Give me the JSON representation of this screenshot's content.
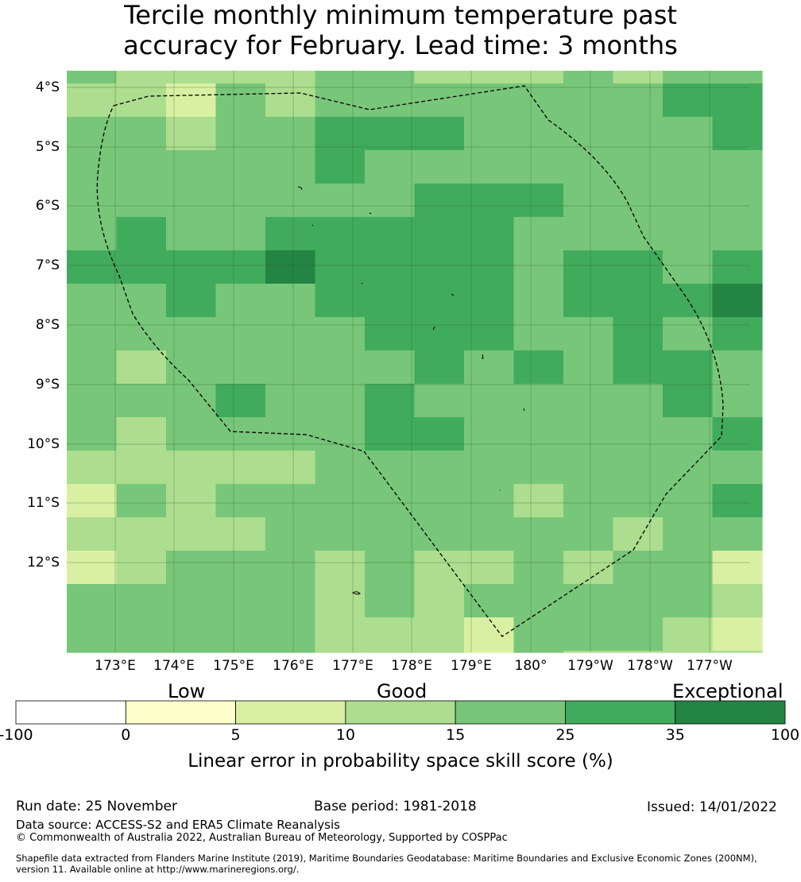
{
  "title_line1": "Tercile monthly minimum temperature past",
  "title_line2": "accuracy for February. Lead time: 3 months",
  "map": {
    "lat_labels": [
      "4°S",
      "5°S",
      "6°S",
      "7°S",
      "8°S",
      "9°S",
      "10°S",
      "11°S",
      "12°S"
    ],
    "lon_labels": [
      "173°E",
      "174°E",
      "175°E",
      "176°E",
      "177°E",
      "178°E",
      "179°E",
      "180°",
      "179°W",
      "178°W",
      "177°W"
    ],
    "grid_note": "cell values are color class indices: 1=0-5, 2=5-10, 3=10-15, 4=15-25, 5=25-35, 6=35-100",
    "grid": [
      [
        4,
        3,
        3,
        3,
        3,
        4,
        4,
        3,
        3,
        3,
        4,
        3,
        4,
        4
      ],
      [
        3,
        3,
        2,
        4,
        3,
        4,
        4,
        4,
        4,
        4,
        4,
        4,
        5,
        5
      ],
      [
        4,
        4,
        3,
        4,
        4,
        5,
        5,
        5,
        4,
        4,
        4,
        4,
        4,
        5
      ],
      [
        4,
        4,
        4,
        4,
        4,
        5,
        4,
        4,
        4,
        4,
        4,
        4,
        4,
        4
      ],
      [
        4,
        4,
        4,
        4,
        4,
        4,
        4,
        5,
        5,
        5,
        4,
        4,
        4,
        4
      ],
      [
        4,
        5,
        4,
        4,
        5,
        5,
        5,
        5,
        5,
        4,
        4,
        4,
        4,
        4
      ],
      [
        5,
        5,
        5,
        5,
        6,
        5,
        5,
        5,
        5,
        4,
        5,
        5,
        4,
        5
      ],
      [
        4,
        4,
        5,
        4,
        4,
        5,
        5,
        5,
        5,
        4,
        5,
        5,
        5,
        6
      ],
      [
        4,
        4,
        4,
        4,
        4,
        4,
        5,
        5,
        5,
        4,
        4,
        5,
        4,
        5
      ],
      [
        4,
        3,
        4,
        4,
        4,
        4,
        4,
        5,
        4,
        5,
        4,
        5,
        5,
        4
      ],
      [
        4,
        4,
        4,
        5,
        4,
        4,
        5,
        4,
        4,
        4,
        4,
        4,
        5,
        4
      ],
      [
        4,
        3,
        4,
        4,
        4,
        4,
        5,
        5,
        4,
        4,
        4,
        4,
        4,
        5
      ],
      [
        3,
        3,
        3,
        3,
        3,
        4,
        4,
        4,
        4,
        4,
        4,
        4,
        4,
        4
      ],
      [
        2,
        4,
        3,
        4,
        4,
        4,
        4,
        4,
        4,
        3,
        4,
        4,
        4,
        5
      ],
      [
        3,
        3,
        3,
        3,
        4,
        4,
        4,
        4,
        4,
        4,
        4,
        3,
        4,
        4
      ],
      [
        2,
        3,
        4,
        4,
        4,
        3,
        4,
        3,
        3,
        4,
        3,
        4,
        4,
        2
      ],
      [
        4,
        4,
        4,
        4,
        4,
        3,
        4,
        3,
        4,
        4,
        4,
        4,
        4,
        3
      ],
      [
        4,
        4,
        4,
        4,
        4,
        3,
        3,
        3,
        2,
        4,
        4,
        4,
        3,
        2
      ],
      [
        4,
        4,
        4,
        4,
        4,
        3,
        3,
        3,
        2,
        4,
        3,
        3,
        3,
        3
      ]
    ]
  },
  "legend": {
    "categories": [
      "Low",
      "Good",
      "Exceptional"
    ],
    "bounds": [
      -100,
      0,
      5,
      10,
      15,
      25,
      35,
      100
    ],
    "tick_labels": [
      "-100",
      "0",
      "5",
      "10",
      "15",
      "25",
      "35",
      "100"
    ],
    "colors": [
      "#ffffff",
      "#ffffcc",
      "#d9f0a3",
      "#addd8e",
      "#78c679",
      "#41ab5d",
      "#238443"
    ],
    "title": "Linear error in probability space skill score (%)"
  },
  "footer": {
    "run_date": "Run date: 25 November",
    "base_period": "Base period: 1981-2018",
    "issued": "Issued: 14/01/2022",
    "data_source": "Data source: ACCESS-S2 and ERA5 Climate Reanalysis",
    "copyright": "© Commonwealth of Australia 2022, Australian Bureau of Meteorology, Supported by COSPPac",
    "shapefile_line1": "Shapefile data extracted from Flanders Marine Institute (2019), Maritime Boundaries Geodatabase: Maritime Boundaries and Exclusive Economic Zones (200NM),",
    "shapefile_line2": "version 11. Available online at http://www.marineregions.org/."
  }
}
